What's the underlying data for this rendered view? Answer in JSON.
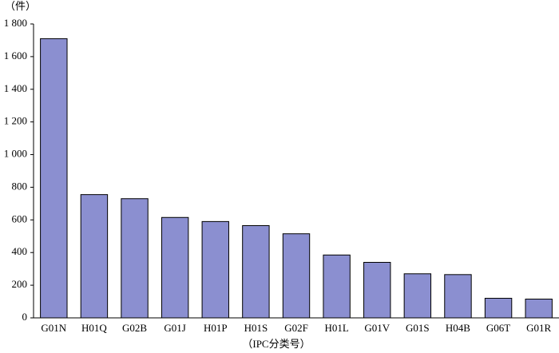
{
  "chart_data": {
    "type": "bar",
    "y_unit": "（件）",
    "x_label": "（IPC分类号）",
    "categories": [
      "G01N",
      "H01Q",
      "G02B",
      "G01J",
      "H01P",
      "H01S",
      "G02F",
      "H01L",
      "G01V",
      "G01S",
      "H04B",
      "G06T",
      "G01R"
    ],
    "values": [
      1710,
      755,
      730,
      615,
      590,
      565,
      515,
      385,
      340,
      270,
      265,
      120,
      115
    ],
    "color": "#8b8fd0",
    "ylim": [
      0,
      1800
    ],
    "yticks": [
      0,
      200,
      400,
      600,
      800,
      {
        "value": 1000,
        "label": "1 000"
      },
      {
        "value": 1200,
        "label": "1 200"
      },
      {
        "value": 1400,
        "label": "1 400"
      },
      {
        "value": 1600,
        "label": "1 600"
      },
      {
        "value": 1800,
        "label": "1 800"
      }
    ],
    "grid": false
  }
}
